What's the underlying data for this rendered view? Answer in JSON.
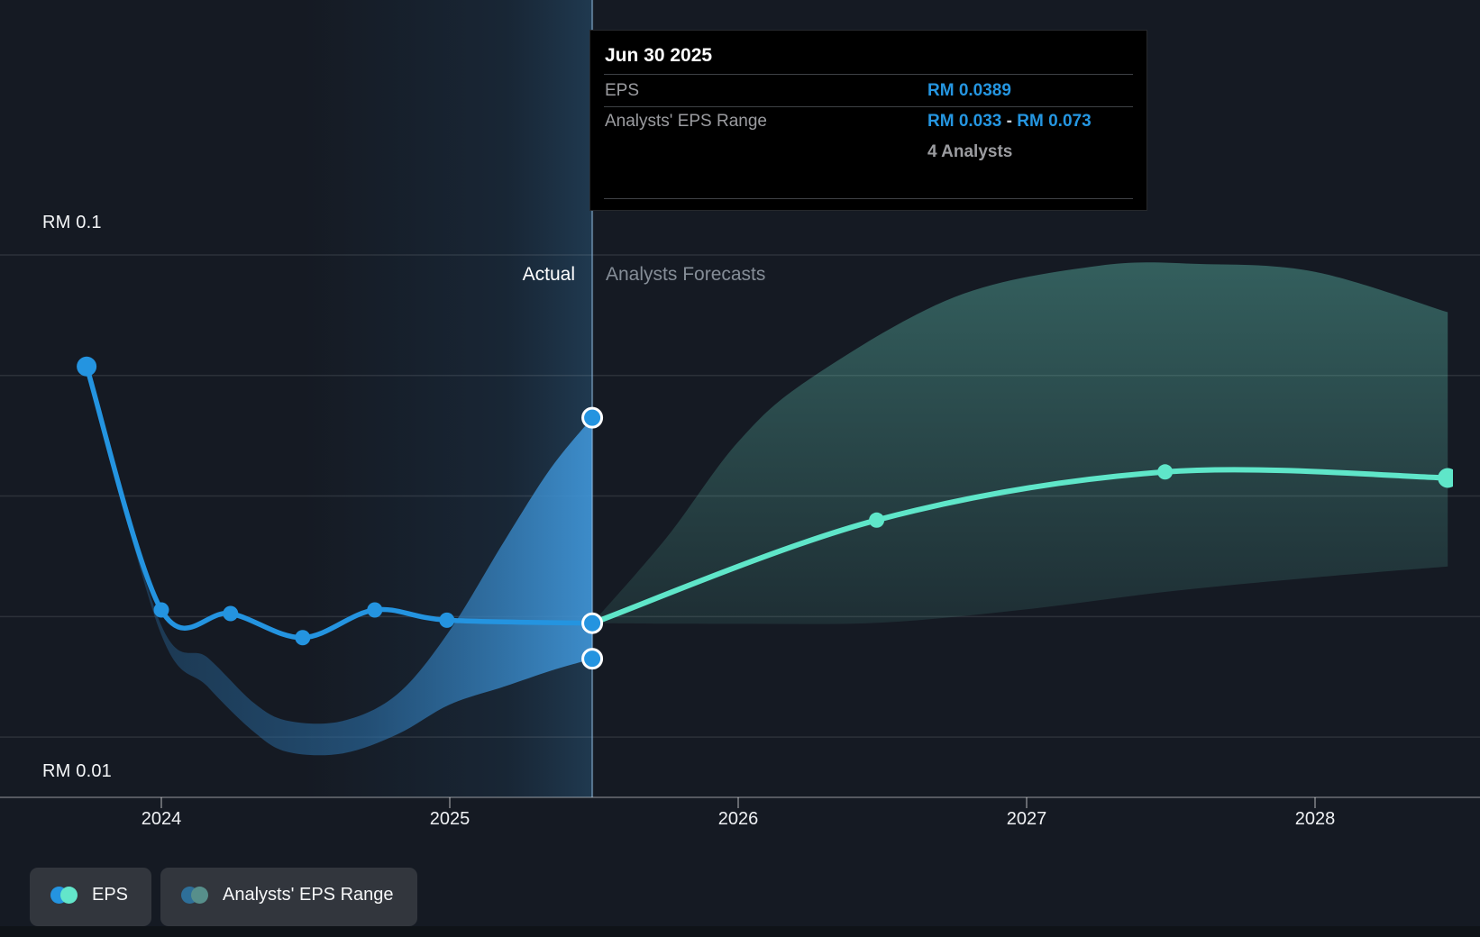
{
  "header": {
    "zone_actual_label": "Actual",
    "zone_forecast_label": "Analysts Forecasts"
  },
  "tooltip": {
    "title": "Jun 30 2025",
    "eps_label": "EPS",
    "eps_value": "RM 0.0389",
    "range_label": "Analysts' EPS Range",
    "range_min": "RM 0.033",
    "range_sep": "-",
    "range_max": "RM 0.073",
    "analysts_note": "4 Analysts"
  },
  "legend": [
    {
      "label": "EPS",
      "dot1": "#2494e0",
      "dot2": "#63e6ca"
    },
    {
      "label": "Analysts' EPS Range",
      "dot1": "#2e6f99",
      "dot2": "#578f8b"
    }
  ],
  "colors": {
    "background": "#151a23",
    "eps_blue": "#2494e0",
    "forecast_mint": "#5fe6c9",
    "range_band_blue_left": "#245a85",
    "range_band_blue_right": "#3f93d4",
    "range_band_mint": "#6fe5cf",
    "divider_line": "#8cb4d8",
    "gridline": "#ffffff",
    "marker_ring": "#ffffff",
    "highlight_band": "#3c8ec9"
  },
  "chart_data": {
    "type": "line",
    "title": "EPS actual vs analysts forecast (RM)",
    "x_axis": {
      "ticks": [
        2024,
        2025,
        2026,
        2027,
        2028
      ]
    },
    "y_axis": {
      "top_label": "RM 0.1",
      "bottom_label": "RM 0.01",
      "top_value": 0.1,
      "baseline_value": 0.01,
      "gridline_values": [
        0.1,
        0.08,
        0.06,
        0.04,
        0.02
      ]
    },
    "divider_year": 2025.494,
    "highlight_band_years": [
      2024.494,
      2025.494
    ],
    "series": [
      {
        "name": "EPS (actual)",
        "color": "#2494e0",
        "points": [
          [
            2023.741,
            0.0815
          ],
          [
            2024.0,
            0.0411
          ],
          [
            2024.24,
            0.0405
          ],
          [
            2024.49,
            0.0365
          ],
          [
            2024.74,
            0.0411
          ],
          [
            2024.99,
            0.0394
          ],
          [
            2025.494,
            0.0389
          ]
        ]
      },
      {
        "name": "EPS (analysts forecast)",
        "color": "#5fe6c9",
        "points": [
          [
            2025.494,
            0.0389
          ],
          [
            2026.48,
            0.056
          ],
          [
            2027.48,
            0.064
          ],
          [
            2028.46,
            0.063
          ]
        ]
      }
    ],
    "actual_range_band": {
      "upper": [
        [
          2023.741,
          0.0815
        ],
        [
          2023.994,
          0.0392
        ],
        [
          2024.16,
          0.0332
        ],
        [
          2024.32,
          0.0257
        ],
        [
          2024.44,
          0.0227
        ],
        [
          2024.63,
          0.0227
        ],
        [
          2024.82,
          0.0272
        ],
        [
          2025.0,
          0.0377
        ],
        [
          2025.19,
          0.0526
        ],
        [
          2025.35,
          0.0646
        ],
        [
          2025.494,
          0.073
        ]
      ],
      "lower": [
        [
          2023.741,
          0.0815
        ],
        [
          2023.994,
          0.0377
        ],
        [
          2024.16,
          0.0284
        ],
        [
          2024.32,
          0.0209
        ],
        [
          2024.44,
          0.0175
        ],
        [
          2024.63,
          0.0173
        ],
        [
          2024.82,
          0.0205
        ],
        [
          2025.0,
          0.0254
        ],
        [
          2025.19,
          0.0284
        ],
        [
          2025.35,
          0.031
        ],
        [
          2025.494,
          0.033
        ]
      ]
    },
    "forecast_range_band": {
      "upper": [
        [
          2025.494,
          0.0389
        ],
        [
          2025.75,
          0.053
        ],
        [
          2026.0,
          0.069
        ],
        [
          2026.25,
          0.0795
        ],
        [
          2026.75,
          0.093
        ],
        [
          2027.25,
          0.0982
        ],
        [
          2027.6,
          0.0985
        ],
        [
          2028.0,
          0.0972
        ],
        [
          2028.46,
          0.0905
        ]
      ],
      "lower": [
        [
          2025.494,
          0.0389
        ],
        [
          2026.0,
          0.0388
        ],
        [
          2026.5,
          0.039
        ],
        [
          2027.0,
          0.0412
        ],
        [
          2027.5,
          0.0442
        ],
        [
          2028.0,
          0.0465
        ],
        [
          2028.46,
          0.0483
        ]
      ]
    },
    "divider_markers": [
      {
        "year": 2025.494,
        "value": 0.073
      },
      {
        "year": 2025.494,
        "value": 0.0389
      },
      {
        "year": 2025.494,
        "value": 0.033
      }
    ]
  }
}
